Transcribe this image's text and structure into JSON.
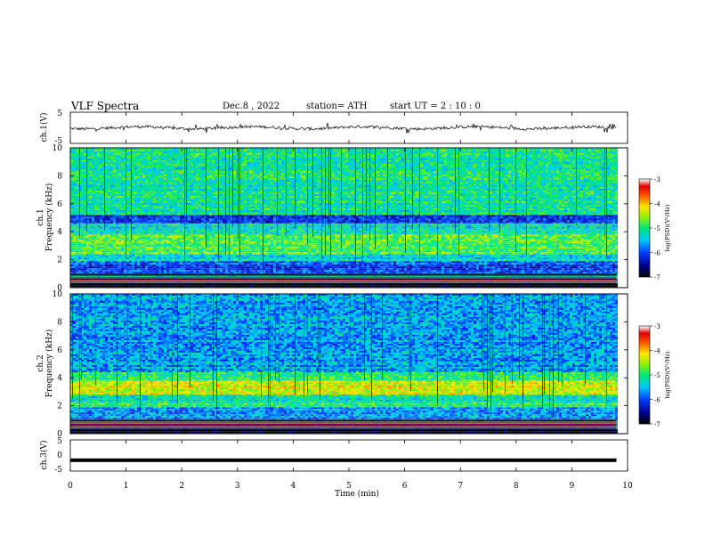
{
  "header": {
    "title": "VLF  Spectra",
    "date": "Dec.8  , 2022",
    "station": "station= ATH",
    "start_ut": "start  UT  =   2  : 10 : 0"
  },
  "chart_data": [
    {
      "type": "line",
      "panel": "ch1-waveform",
      "ylabel": "ch.1(V)",
      "ylim": [
        -5,
        5
      ],
      "yticks": [
        "5",
        "-5"
      ],
      "xlim": [
        0,
        10
      ],
      "description_values": "noisy waveform centered near 0 V, about -1 to +1 V with spikes",
      "series": [
        {
          "values_range": [
            -1.5,
            1.5
          ]
        }
      ]
    },
    {
      "type": "heatmap",
      "panel": "ch1-spectrogram",
      "ylabel": "ch.1\nFrequency  (kHz)",
      "ylabel_line1": "ch.1",
      "ylabel_line2": "Frequency  (kHz)",
      "ylim": [
        0,
        10
      ],
      "yticks": [
        "0",
        "2",
        "4",
        "6",
        "8",
        "10"
      ],
      "xlim": [
        0,
        10
      ],
      "data_end_min": 9.8,
      "bands": [
        {
          "from_khz": 0.0,
          "to_khz": 0.3,
          "level": -7.0
        },
        {
          "from_khz": 0.3,
          "to_khz": 1.0,
          "level": -5.3
        },
        {
          "from_khz": 1.0,
          "to_khz": 1.9,
          "level": -6.0
        },
        {
          "from_khz": 1.9,
          "to_khz": 2.4,
          "level": -5.3
        },
        {
          "from_khz": 2.4,
          "to_khz": 3.8,
          "level": -4.8
        },
        {
          "from_khz": 3.8,
          "to_khz": 4.6,
          "level": -5.3
        },
        {
          "from_khz": 4.6,
          "to_khz": 5.2,
          "level": -6.1
        },
        {
          "from_khz": 5.2,
          "to_khz": 10.0,
          "level": -5.1
        }
      ],
      "colorbar": {
        "label": "log(PSD)(V²/Hz)",
        "ticks": [
          "-3",
          "-4",
          "-5",
          "-6",
          "-7"
        ],
        "range": [
          -7,
          -3
        ]
      }
    },
    {
      "type": "heatmap",
      "panel": "ch2-spectrogram",
      "ylabel": "ch.2\nFrequency  (kHz)",
      "ylabel_line1": "ch.2",
      "ylabel_line2": "Frequency  (kHz)",
      "ylim": [
        0,
        10
      ],
      "yticks": [
        "0",
        "2",
        "4",
        "6",
        "8",
        "10"
      ],
      "xlim": [
        0,
        10
      ],
      "data_end_min": 9.8,
      "bands": [
        {
          "from_khz": 0.0,
          "to_khz": 0.3,
          "level": -7.0
        },
        {
          "from_khz": 0.3,
          "to_khz": 1.0,
          "level": -5.4
        },
        {
          "from_khz": 1.0,
          "to_khz": 1.9,
          "level": -5.7
        },
        {
          "from_khz": 1.9,
          "to_khz": 2.3,
          "level": -5.0
        },
        {
          "from_khz": 2.3,
          "to_khz": 2.8,
          "level": -5.1
        },
        {
          "from_khz": 2.8,
          "to_khz": 3.8,
          "level": -4.3
        },
        {
          "from_khz": 3.8,
          "to_khz": 4.4,
          "level": -5.0
        },
        {
          "from_khz": 4.4,
          "to_khz": 10.0,
          "level": -5.6
        }
      ],
      "colorbar": {
        "label": "log(PSD)(V²/Hz)",
        "ticks": [
          "-3",
          "-4",
          "-5",
          "-6",
          "-7"
        ],
        "range": [
          -7,
          -3
        ]
      }
    },
    {
      "type": "line",
      "panel": "ch3-waveform",
      "ylabel": "ch.3(V)",
      "ylim": [
        -5,
        5
      ],
      "yticks": [
        "5",
        "0",
        "-5"
      ],
      "xlim": [
        0,
        10
      ],
      "xlabel": "Time  (min)",
      "xticks": [
        "0",
        "1",
        "2",
        "3",
        "4",
        "5",
        "6",
        "7",
        "8",
        "9",
        "10"
      ],
      "series": [
        {
          "constant_value": -1.5
        }
      ]
    }
  ]
}
